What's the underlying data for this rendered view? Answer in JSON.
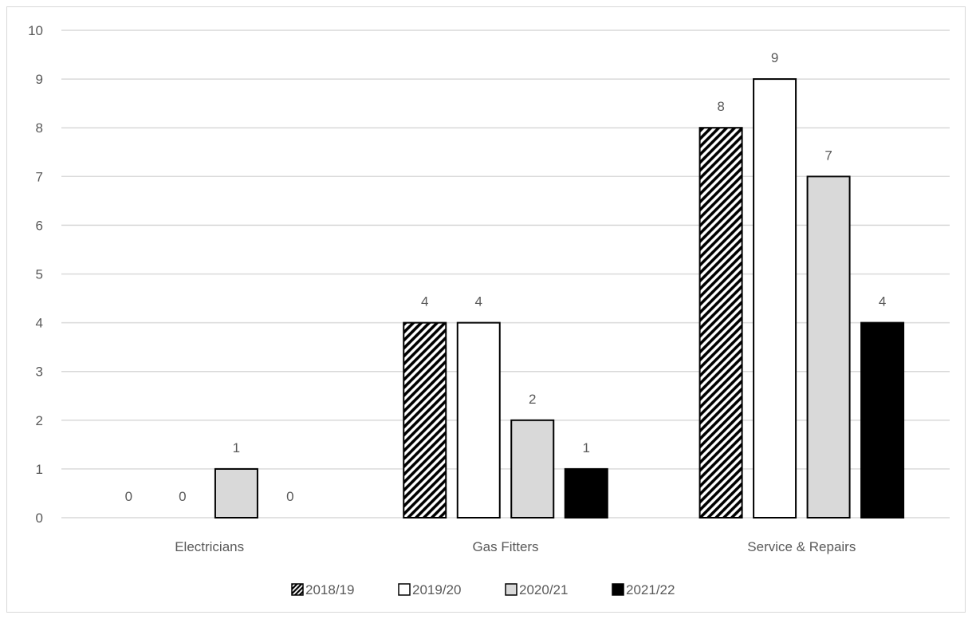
{
  "chart_data": {
    "type": "bar",
    "title": "",
    "xlabel": "",
    "ylabel": "",
    "categories": [
      "Electricians",
      "Gas Fitters",
      "Service & Repairs"
    ],
    "series": [
      {
        "name": "2018/19",
        "values": [
          0,
          4,
          8
        ],
        "fill": "hatched",
        "color": "#000000"
      },
      {
        "name": "2019/20",
        "values": [
          0,
          4,
          9
        ],
        "fill": "solid",
        "color": "#ffffff"
      },
      {
        "name": "2020/21",
        "values": [
          1,
          2,
          7
        ],
        "fill": "solid",
        "color": "#d9d9d9"
      },
      {
        "name": "2021/22",
        "values": [
          0,
          1,
          4
        ],
        "fill": "solid",
        "color": "#000000"
      }
    ],
    "ylim": [
      0,
      10
    ],
    "yticks": [
      0,
      1,
      2,
      3,
      4,
      5,
      6,
      7,
      8,
      9,
      10
    ],
    "grid": true,
    "legend_position": "bottom",
    "data_labels": true
  }
}
